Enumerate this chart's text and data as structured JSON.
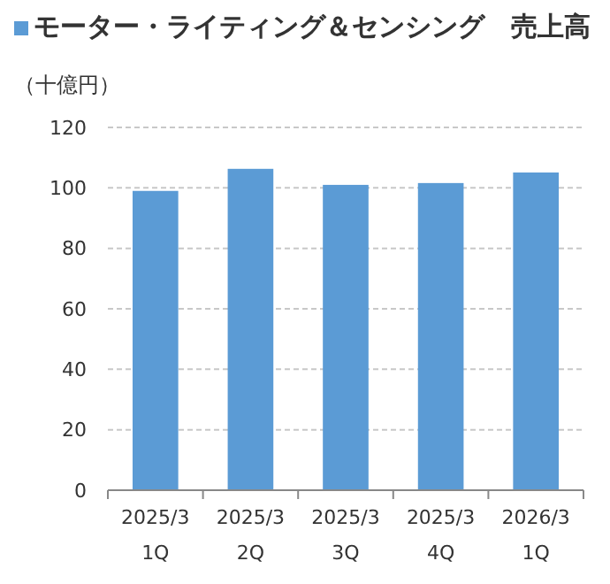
{
  "chart_data": {
    "type": "bar",
    "ylabel": "（十億円）",
    "categories": [
      "2025/3\n1Q",
      "2025/3\n2Q",
      "2025/3\n3Q",
      "2025/3\n4Q",
      "2026/3\n1Q"
    ],
    "series": [
      {
        "name": "モーター・ライティング＆センシング　売上高",
        "color": "#5b9bd5",
        "values": [
          99,
          106.3,
          101,
          101.6,
          105.1
        ]
      }
    ],
    "ylim": [
      0,
      120
    ],
    "yticks": [
      0,
      20,
      40,
      60,
      80,
      100,
      120
    ],
    "grid": "y",
    "legend": "top"
  }
}
